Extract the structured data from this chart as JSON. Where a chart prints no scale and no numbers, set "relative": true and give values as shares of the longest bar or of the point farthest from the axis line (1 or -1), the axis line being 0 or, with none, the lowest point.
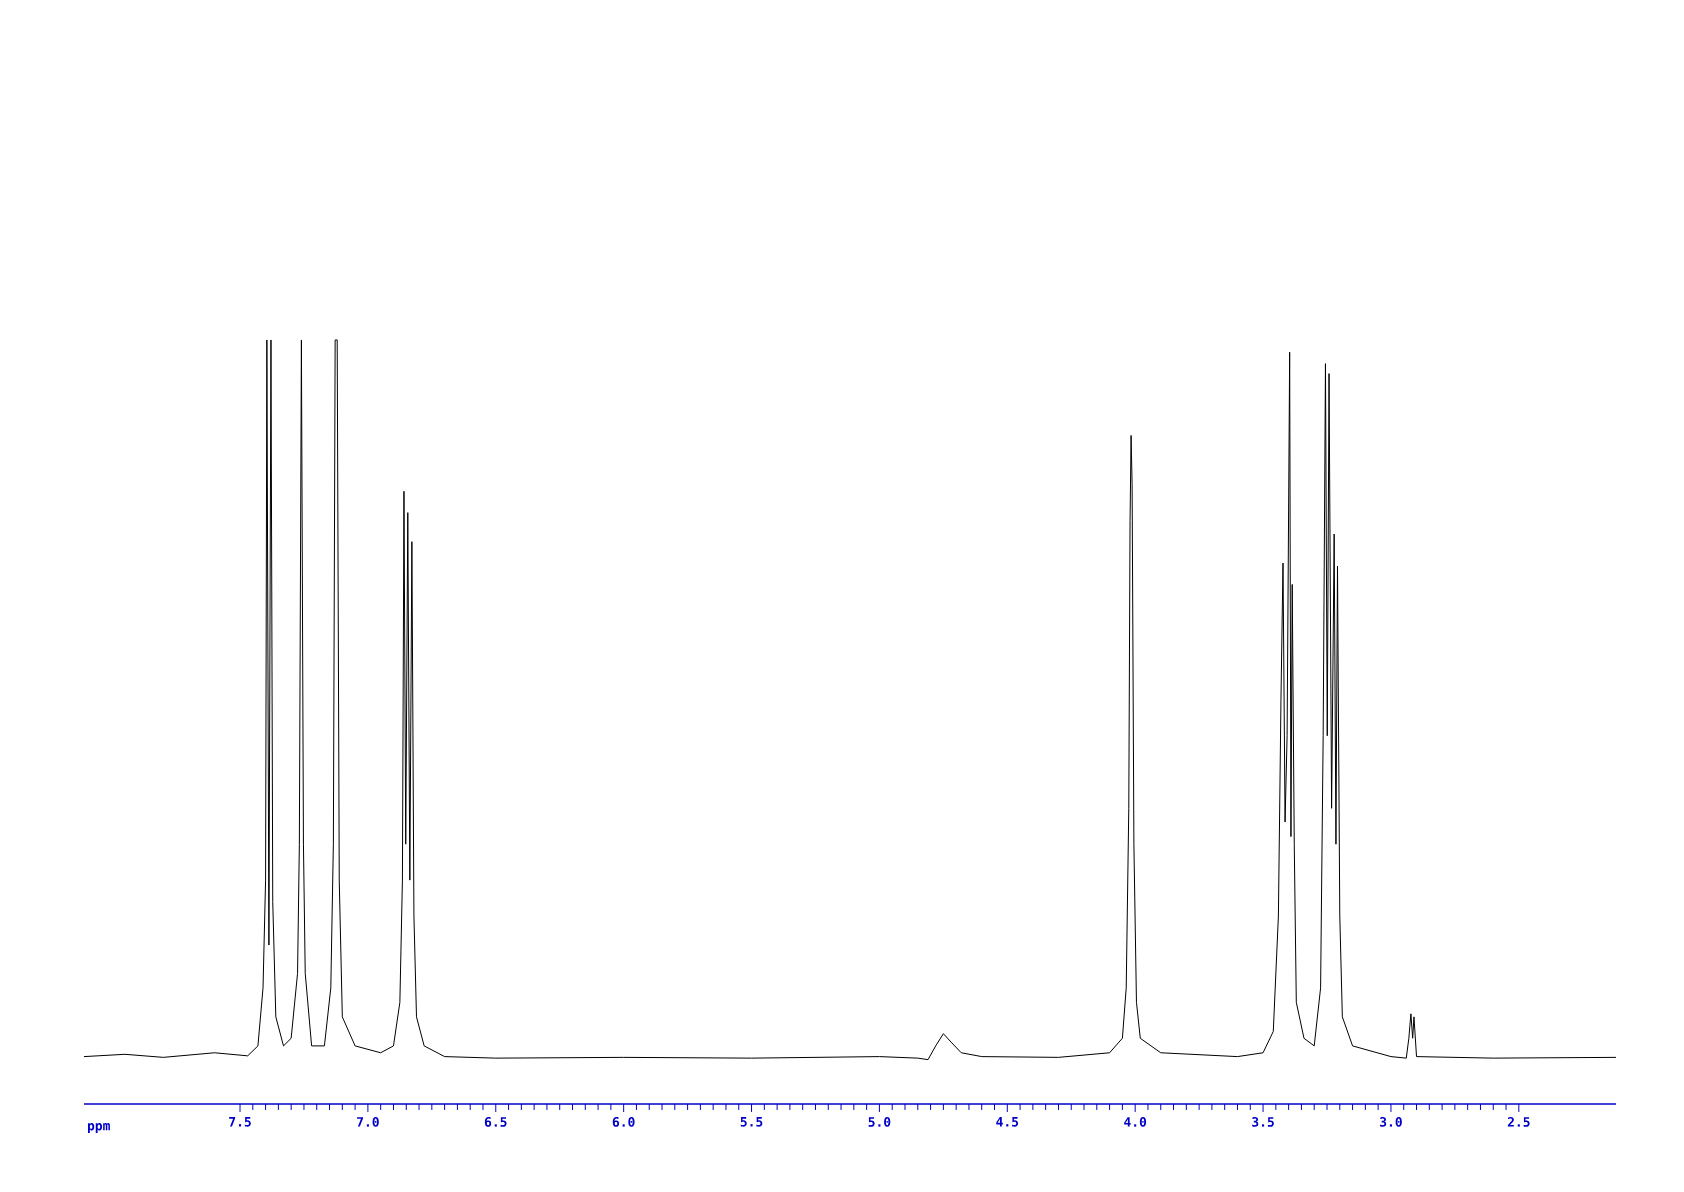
{
  "chart_data": {
    "type": "line",
    "relative": true,
    "xlabel": "ppm",
    "xlim": [
      8.11,
      2.12
    ],
    "xticks": [
      7.5,
      {
        "value": 7.0,
        "label": "7.0"
      },
      6.5,
      {
        "value": 6.0,
        "label": "6.0"
      },
      5.5,
      {
        "value": 5.0,
        "label": "5.0"
      },
      4.5,
      {
        "value": 4.0,
        "label": "4.0"
      },
      3.5,
      {
        "value": 3.0,
        "label": "3.0"
      },
      2.5
    ],
    "marker": "none",
    "line_style": "solid",
    "color": "#000000",
    "x": [
      8.11,
      7.95,
      7.8,
      7.6,
      7.47,
      7.43,
      7.41,
      7.4,
      7.395,
      7.387,
      7.379,
      7.372,
      7.36,
      7.33,
      7.3,
      7.275,
      7.268,
      7.26,
      7.252,
      7.245,
      7.22,
      7.17,
      7.145,
      7.135,
      7.128,
      7.12,
      7.112,
      7.1,
      7.05,
      6.95,
      6.9,
      6.875,
      6.865,
      6.859,
      6.852,
      6.844,
      6.836,
      6.828,
      6.82,
      6.81,
      6.78,
      6.7,
      6.5,
      6.0,
      5.5,
      5.0,
      4.85,
      4.81,
      4.78,
      4.75,
      4.72,
      4.68,
      4.6,
      4.3,
      4.1,
      4.05,
      4.035,
      4.025,
      4.02,
      4.016,
      4.012,
      4.005,
      3.995,
      3.98,
      3.9,
      3.6,
      3.5,
      3.46,
      3.44,
      3.43,
      3.422,
      3.414,
      3.406,
      3.396,
      3.391,
      3.386,
      3.378,
      3.37,
      3.34,
      3.3,
      3.275,
      3.265,
      3.256,
      3.249,
      3.242,
      3.232,
      3.222,
      3.215,
      3.209,
      3.2,
      3.19,
      3.15,
      3.0,
      2.94,
      2.93,
      2.922,
      2.915,
      2.91,
      2.9,
      2.6,
      2.12
    ],
    "values": [
      0.062,
      0.065,
      0.061,
      0.067,
      0.063,
      0.076,
      0.152,
      0.293,
      1.0,
      0.208,
      1.0,
      0.265,
      0.114,
      0.076,
      0.086,
      0.171,
      0.34,
      1.0,
      0.34,
      0.171,
      0.076,
      0.076,
      0.152,
      0.34,
      1.0,
      1.0,
      0.293,
      0.114,
      0.076,
      0.067,
      0.076,
      0.133,
      0.293,
      0.802,
      0.34,
      0.774,
      0.293,
      0.736,
      0.246,
      0.114,
      0.076,
      0.062,
      0.06,
      0.061,
      0.06,
      0.062,
      0.06,
      0.058,
      0.076,
      0.092,
      0.081,
      0.067,
      0.062,
      0.061,
      0.067,
      0.086,
      0.152,
      0.387,
      0.764,
      0.875,
      0.811,
      0.34,
      0.133,
      0.086,
      0.067,
      0.062,
      0.067,
      0.095,
      0.246,
      0.529,
      0.708,
      0.369,
      0.482,
      0.984,
      0.35,
      0.68,
      0.34,
      0.133,
      0.086,
      0.076,
      0.152,
      0.482,
      0.969,
      0.482,
      0.956,
      0.387,
      0.746,
      0.34,
      0.704,
      0.246,
      0.114,
      0.076,
      0.062,
      0.06,
      0.086,
      0.118,
      0.086,
      0.114,
      0.062,
      0.06,
      0.061
    ]
  }
}
